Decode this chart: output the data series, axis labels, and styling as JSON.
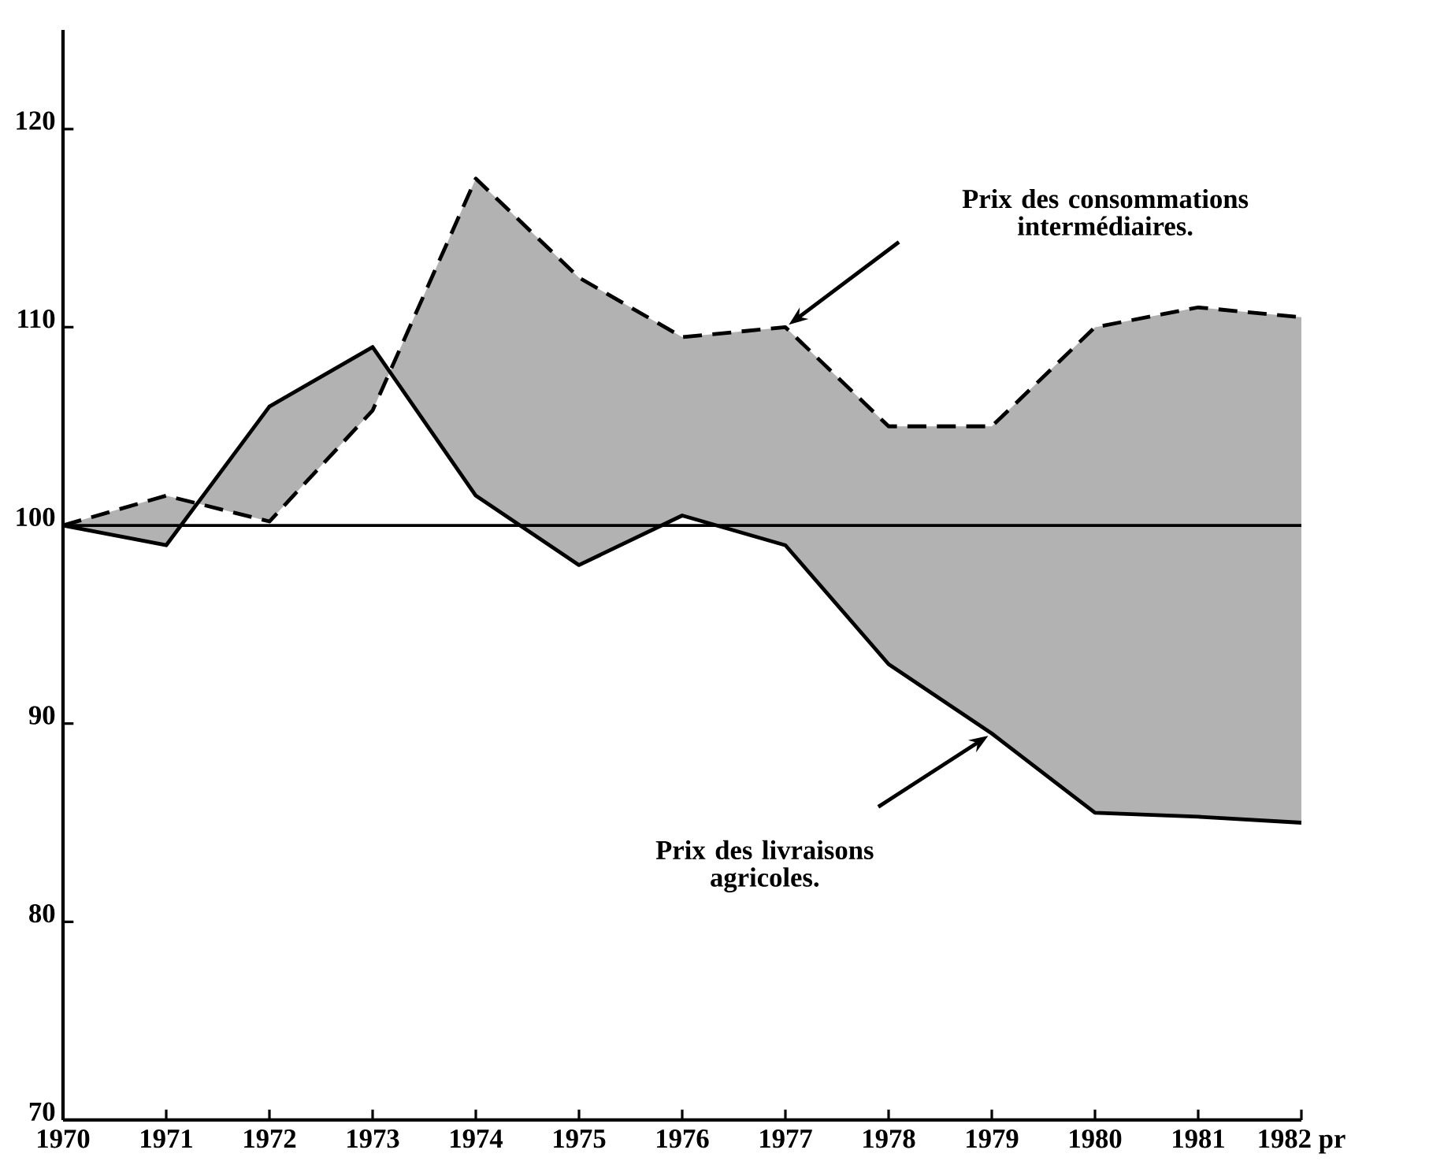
{
  "chart_data": {
    "type": "line",
    "x": [
      1970,
      1971,
      1972,
      1973,
      1974,
      1975,
      1976,
      1977,
      1978,
      1979,
      1980,
      1981,
      1982
    ],
    "series": [
      {
        "color": "#000000",
        "line_style": "dashed",
        "values": [
          100,
          101.5,
          100.2,
          105.8,
          117.5,
          112.5,
          109.5,
          110,
          105,
          105,
          110,
          111,
          110.5
        ]
      },
      {
        "color": "#000000",
        "line_style": "solid",
        "values": [
          100,
          99,
          106,
          109,
          101.5,
          98,
          100.5,
          99,
          93,
          89.5,
          85.5,
          85.3,
          85
        ]
      }
    ],
    "annotations": [
      "Prix des consommations intermédiaires.",
      "Prix des livraisons agricoles."
    ],
    "xlim": [
      1970,
      1982
    ],
    "xticks": [
      1970,
      1971,
      1972,
      1973,
      1974,
      1975,
      1976,
      1977,
      1978,
      1979,
      1980,
      1981,
      {
        "value": 1982,
        "label": "1982 pr"
      }
    ],
    "ylim": [
      70,
      125
    ],
    "yticks": [
      70,
      80,
      90,
      100,
      110,
      120
    ],
    "ref_lines": [
      {
        "axis": "y",
        "value": 100,
        "color": "#000000"
      }
    ],
    "grid": false,
    "legend": false,
    "marker": "none"
  }
}
